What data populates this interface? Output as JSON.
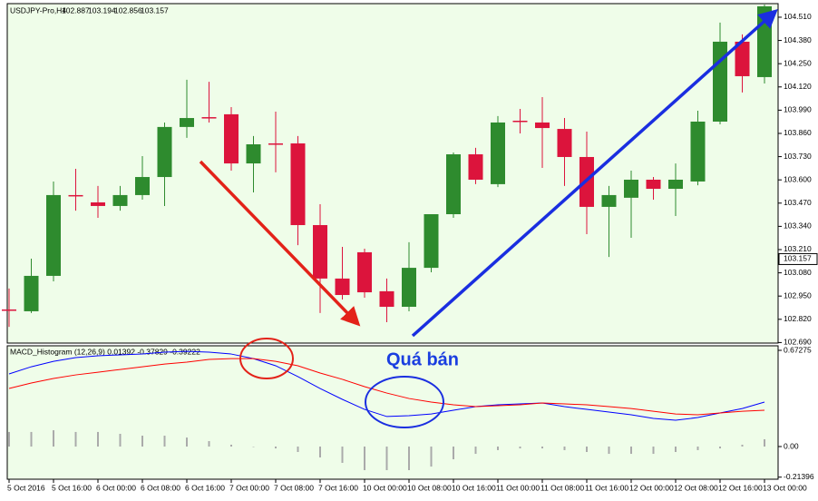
{
  "chart_data": [
    {
      "type": "candlestick",
      "symbol": "USDJPY-Pro,H4",
      "last_bar": [
        102.887,
        103.194,
        102.856,
        103.157
      ],
      "current_price": 103.157,
      "up_color": "#2e8b2e",
      "down_color": "#dc143c",
      "categories": [
        "5 Oct 2016",
        null,
        "5 Oct 16:00",
        null,
        "6 Oct 00:00",
        null,
        "6 Oct 08:00",
        null,
        "6 Oct 16:00",
        null,
        "7 Oct 00:00",
        null,
        "7 Oct 08:00",
        null,
        "7 Oct 16:00",
        null,
        "10 Oct 00:00",
        null,
        "10 Oct 08:00",
        null,
        "10 Oct 16:00",
        null,
        "11 Oct 00:00",
        null,
        "11 Oct 08:00",
        null,
        "11 Oct 16:00",
        null,
        "12 Oct 00:00",
        null,
        "12 Oct 08:00",
        null,
        "12 Oct 16:00",
        null,
        "13 Oct 00:00"
      ],
      "open": [
        102.875,
        102.865,
        103.063,
        103.515,
        103.474,
        103.454,
        103.515,
        103.616,
        103.896,
        103.951,
        103.967,
        103.692,
        103.804,
        103.804,
        103.347,
        103.048,
        103.195,
        102.977,
        102.89,
        103.108,
        103.408,
        103.743,
        103.576,
        103.931,
        103.921,
        103.885,
        103.728,
        103.449,
        103.5,
        103.601,
        103.55,
        103.591,
        103.926,
        104.373,
        104.175
      ],
      "high": [
        102.992,
        103.159,
        103.591,
        103.662,
        103.566,
        103.566,
        103.733,
        103.921,
        104.16,
        104.149,
        104.007,
        103.845,
        103.982,
        103.845,
        103.464,
        103.225,
        103.215,
        103.048,
        103.251,
        103.408,
        103.753,
        103.779,
        103.957,
        103.997,
        104.063,
        103.946,
        103.87,
        103.566,
        103.652,
        103.616,
        103.692,
        103.987,
        104.48,
        104.414,
        104.581
      ],
      "low": [
        102.778,
        102.855,
        103.032,
        103.428,
        103.388,
        103.428,
        103.489,
        103.454,
        103.835,
        103.921,
        103.652,
        103.53,
        103.642,
        103.235,
        102.855,
        102.931,
        102.941,
        102.804,
        102.865,
        103.083,
        103.388,
        103.576,
        103.56,
        103.86,
        103.667,
        103.566,
        103.296,
        103.169,
        103.276,
        103.489,
        103.398,
        103.57,
        103.911,
        104.089,
        104.139
      ],
      "close": [
        102.87,
        103.063,
        103.515,
        103.51,
        103.454,
        103.515,
        103.616,
        103.896,
        103.946,
        103.946,
        103.692,
        103.799,
        103.799,
        103.347,
        103.048,
        102.956,
        102.971,
        102.89,
        103.108,
        103.408,
        103.743,
        103.601,
        103.921,
        103.926,
        103.89,
        103.728,
        103.449,
        103.515,
        103.601,
        103.55,
        103.601,
        103.926,
        104.373,
        104.18,
        104.571
      ],
      "ylim": [
        102.687,
        104.586
      ],
      "yticks": [
        {
          "value": 104.51,
          "label": "104.510"
        },
        {
          "value": 104.38,
          "label": "104.380"
        },
        {
          "value": 104.25,
          "label": "104.250"
        },
        {
          "value": 104.12,
          "label": "104.120"
        },
        {
          "value": 103.99,
          "label": "103.990"
        },
        {
          "value": 103.86,
          "label": "103.860"
        },
        {
          "value": 103.73,
          "label": "103.730"
        },
        {
          "value": 103.6,
          "label": "103.600"
        },
        {
          "value": 103.47,
          "label": "103.470"
        },
        {
          "value": 103.34,
          "label": "103.340"
        },
        {
          "value": 103.21,
          "label": "103.210"
        },
        {
          "value": 103.08,
          "label": "103.080"
        },
        {
          "value": 102.95,
          "label": "102.950"
        },
        {
          "value": 102.82,
          "label": "102.820"
        },
        {
          "value": 102.69,
          "label": "102.690"
        }
      ]
    },
    {
      "type": "macd",
      "title": "MACD_Histogram (12,26,9) 0.01392 -0.37829 -0.39222",
      "annotation": "Quá bán",
      "ylim": [
        -0.2284,
        0.7045
      ],
      "yticks": [
        0.67275,
        {
          "value": 0,
          "label": "0.00"
        },
        -0.21396
      ],
      "series": [
        {
          "color": "#0000ff",
          "values": [
            0.508,
            0.558,
            0.596,
            0.622,
            0.635,
            0.641,
            0.647,
            0.66,
            0.666,
            0.66,
            0.647,
            0.615,
            0.565,
            0.489,
            0.406,
            0.33,
            0.26,
            0.21,
            0.216,
            0.228,
            0.254,
            0.279,
            0.292,
            0.298,
            0.305,
            0.279,
            0.26,
            0.241,
            0.222,
            0.197,
            0.184,
            0.203,
            0.235,
            0.266,
            0.311
          ]
        },
        {
          "color": "#ff0000",
          "values": [
            0.406,
            0.444,
            0.476,
            0.501,
            0.52,
            0.539,
            0.558,
            0.577,
            0.59,
            0.609,
            0.615,
            0.615,
            0.596,
            0.565,
            0.514,
            0.47,
            0.419,
            0.374,
            0.336,
            0.311,
            0.292,
            0.279,
            0.286,
            0.292,
            0.305,
            0.298,
            0.292,
            0.279,
            0.266,
            0.247,
            0.228,
            0.222,
            0.235,
            0.247,
            0.254
          ]
        }
      ],
      "histogram": {
        "color": "#aaaaaa",
        "values": [
          0.102,
          0.102,
          0.114,
          0.102,
          0.102,
          0.089,
          0.076,
          0.076,
          0.063,
          0.038,
          0.013,
          0,
          -0.013,
          -0.038,
          -0.076,
          -0.114,
          -0.165,
          -0.165,
          -0.165,
          -0.14,
          -0.089,
          -0.051,
          -0.025,
          -0.013,
          -0.013,
          -0.025,
          -0.038,
          -0.051,
          -0.051,
          -0.051,
          -0.038,
          -0.025,
          -0.013,
          0.013,
          0.051
        ]
      }
    }
  ]
}
